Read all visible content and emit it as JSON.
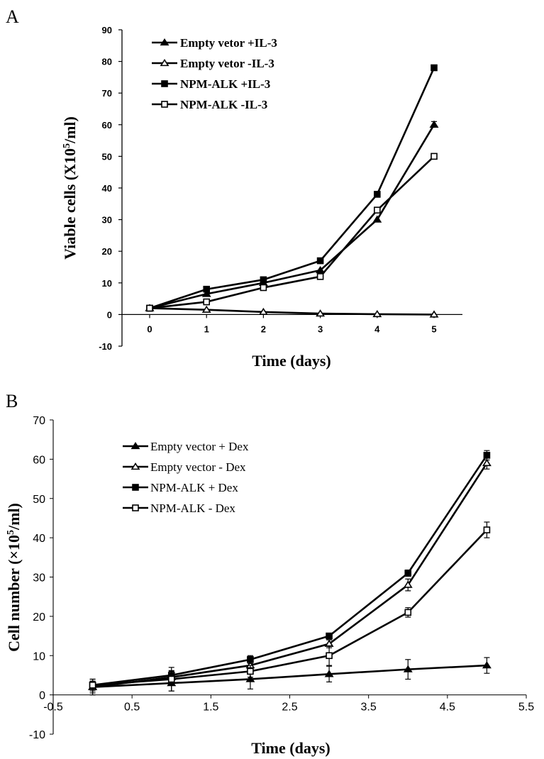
{
  "chart_data": [
    {
      "panel": "A",
      "type": "line",
      "xlabel": "Time (days)",
      "ylabel_main": "Viable cells (X10",
      "ylabel_sup": "5",
      "ylabel_tail": "/ml)",
      "categories": [
        "0",
        "1",
        "2",
        "3",
        "4",
        "5"
      ],
      "ylim": [
        -10,
        90
      ],
      "yticks": [
        -10,
        0,
        10,
        20,
        30,
        40,
        50,
        60,
        70,
        80,
        90
      ],
      "series": [
        {
          "name": "Empty vetor +IL-3",
          "marker": "triangle-filled",
          "values": [
            2,
            6.5,
            10,
            14,
            30,
            60
          ],
          "err": [
            0,
            0,
            0,
            0,
            0,
            1
          ]
        },
        {
          "name": "Empty vetor -IL-3",
          "marker": "triangle-open",
          "values": [
            2,
            1.5,
            0.8,
            0.3,
            0.1,
            0
          ],
          "err": [
            0,
            0,
            0,
            0,
            0,
            0
          ]
        },
        {
          "name": "NPM-ALK +IL-3",
          "marker": "square-filled",
          "values": [
            2,
            8,
            11,
            17,
            38,
            78
          ],
          "err": [
            0,
            0,
            0,
            0,
            0,
            0
          ]
        },
        {
          "name": "NPM-ALK -IL-3",
          "marker": "square-open",
          "values": [
            2,
            4,
            8.5,
            12,
            33,
            50
          ],
          "err": [
            0,
            0,
            0,
            0,
            0,
            0
          ]
        }
      ]
    },
    {
      "panel": "B",
      "type": "line",
      "xlabel": "Time (days)",
      "ylabel_main": "Cell number  (×10",
      "ylabel_sup": "5",
      "ylabel_tail": "/ml)",
      "x": [
        0,
        1,
        2,
        3,
        4,
        5
      ],
      "xlim": [
        -0.5,
        5.5
      ],
      "xticks": [
        "-0.5",
        "0.5",
        "1.5",
        "2.5",
        "3.5",
        "4.5",
        "5.5"
      ],
      "ylim": [
        -10,
        70
      ],
      "yticks": [
        -10,
        0,
        10,
        20,
        30,
        40,
        50,
        60,
        70
      ],
      "series": [
        {
          "name": "Empty vector + Dex",
          "marker": "triangle-filled",
          "values": [
            2,
            3,
            4,
            5.3,
            6.5,
            7.5
          ],
          "err": [
            2,
            2,
            2.5,
            2,
            2.5,
            2
          ]
        },
        {
          "name": "Empty vector - Dex",
          "marker": "triangle-open",
          "values": [
            2,
            4.5,
            7.5,
            13,
            28,
            59
          ],
          "err": [
            1.5,
            1.5,
            1,
            1,
            1.5,
            1.5
          ]
        },
        {
          "name": "NPM-ALK + Dex",
          "marker": "square-filled",
          "values": [
            2.5,
            5,
            9,
            15,
            31,
            61
          ],
          "err": [
            1,
            1.2,
            1,
            0.5,
            0.8,
            1.2
          ]
        },
        {
          "name": "NPM-ALK - Dex",
          "marker": "square-open",
          "values": [
            2.5,
            4,
            6,
            10,
            21,
            42
          ],
          "err": [
            1.5,
            3,
            1.5,
            2.5,
            1.2,
            2
          ]
        }
      ]
    }
  ]
}
